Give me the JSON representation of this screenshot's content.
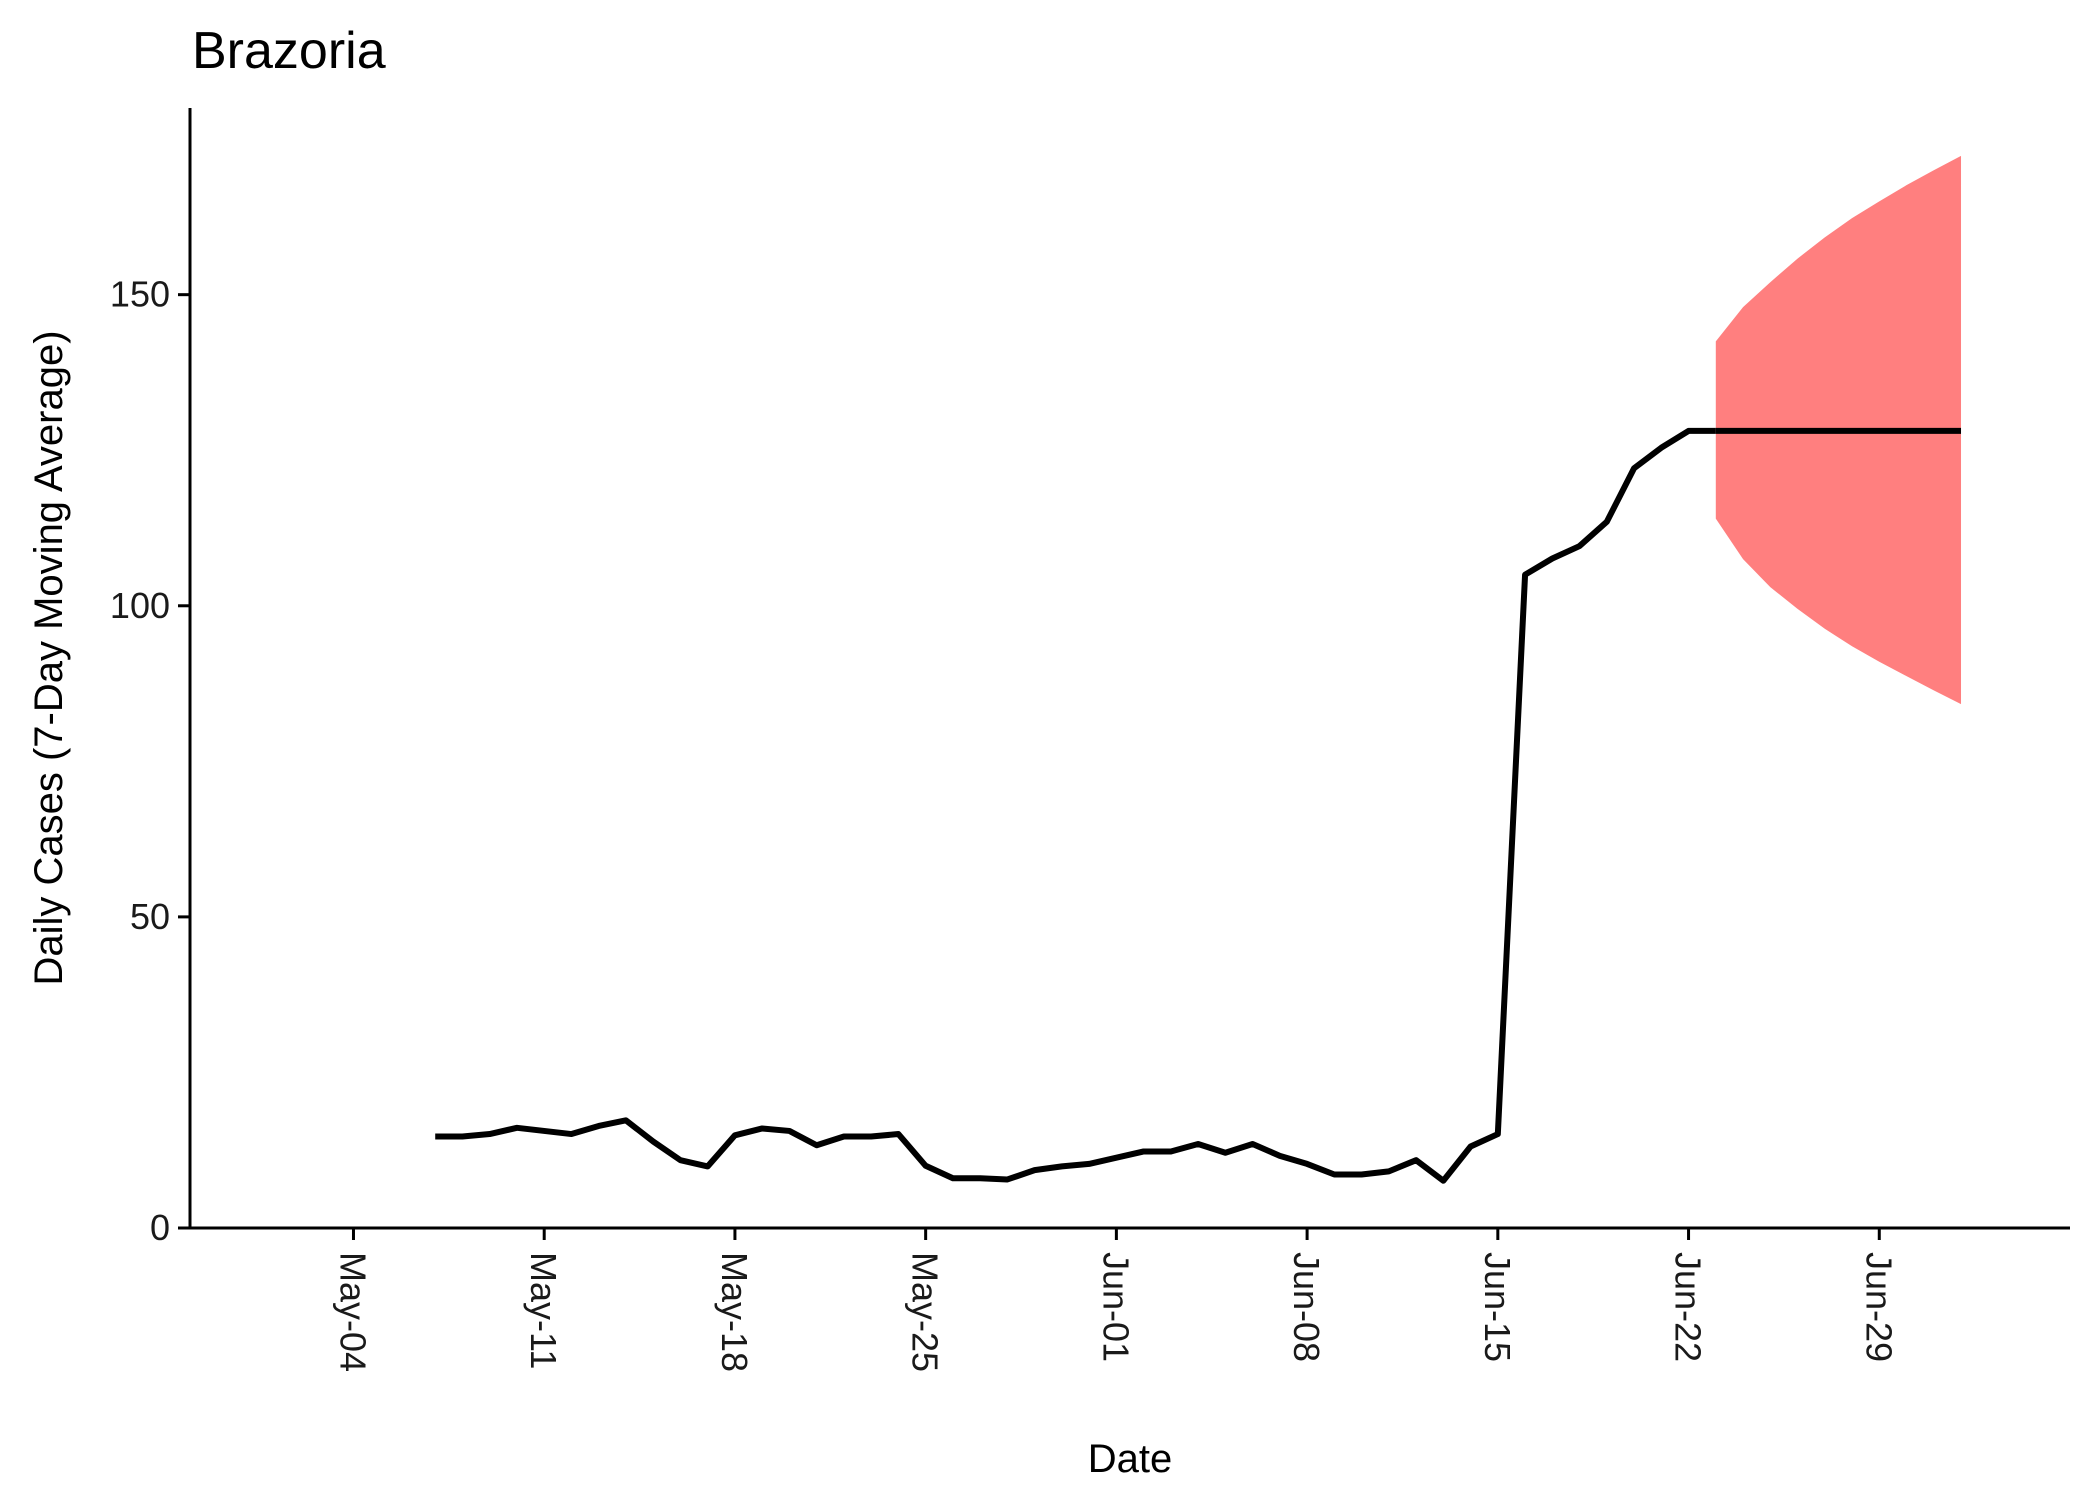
{
  "chart_data": {
    "type": "line",
    "title": "Brazoria",
    "xlabel": "Date",
    "ylabel": "Daily Cases (7-Day Moving Average)",
    "x_type": "date",
    "xlim": [
      "2020-04-28",
      "2020-07-06"
    ],
    "ylim": [
      0,
      180
    ],
    "x_ticks": [
      {
        "date": "2020-05-04",
        "label": "May-04"
      },
      {
        "date": "2020-05-11",
        "label": "May-11"
      },
      {
        "date": "2020-05-18",
        "label": "May-18"
      },
      {
        "date": "2020-05-25",
        "label": "May-25"
      },
      {
        "date": "2020-06-01",
        "label": "Jun-01"
      },
      {
        "date": "2020-06-08",
        "label": "Jun-08"
      },
      {
        "date": "2020-06-15",
        "label": "Jun-15"
      },
      {
        "date": "2020-06-22",
        "label": "Jun-22"
      },
      {
        "date": "2020-06-29",
        "label": "Jun-29"
      }
    ],
    "y_ticks": [
      {
        "value": 0,
        "label": "0"
      },
      {
        "value": 50,
        "label": "50"
      },
      {
        "value": 100,
        "label": "100"
      },
      {
        "value": 150,
        "label": "150"
      }
    ],
    "grid": false,
    "legend": "none",
    "series": [
      {
        "kind": "observed",
        "color": "#000000",
        "points": [
          [
            "2020-05-07",
            14.7
          ],
          [
            "2020-05-08",
            14.7
          ],
          [
            "2020-05-09",
            15.1
          ],
          [
            "2020-05-10",
            16.1
          ],
          [
            "2020-05-11",
            15.6
          ],
          [
            "2020-05-12",
            15.1
          ],
          [
            "2020-05-13",
            16.4
          ],
          [
            "2020-05-14",
            17.3
          ],
          [
            "2020-05-15",
            13.9
          ],
          [
            "2020-05-16",
            10.9
          ],
          [
            "2020-05-17",
            9.9
          ],
          [
            "2020-05-18",
            14.9
          ],
          [
            "2020-05-19",
            16.0
          ],
          [
            "2020-05-20",
            15.6
          ],
          [
            "2020-05-21",
            13.3
          ],
          [
            "2020-05-22",
            14.7
          ],
          [
            "2020-05-23",
            14.7
          ],
          [
            "2020-05-24",
            15.1
          ],
          [
            "2020-05-25",
            10.0
          ],
          [
            "2020-05-26",
            8.0
          ],
          [
            "2020-05-27",
            8.0
          ],
          [
            "2020-05-28",
            7.8
          ],
          [
            "2020-05-29",
            9.3
          ],
          [
            "2020-05-30",
            9.9
          ],
          [
            "2020-05-31",
            10.3
          ],
          [
            "2020-06-01",
            11.3
          ],
          [
            "2020-06-02",
            12.3
          ],
          [
            "2020-06-03",
            12.3
          ],
          [
            "2020-06-04",
            13.5
          ],
          [
            "2020-06-05",
            12.1
          ],
          [
            "2020-06-06",
            13.5
          ],
          [
            "2020-06-07",
            11.6
          ],
          [
            "2020-06-08",
            10.3
          ],
          [
            "2020-06-09",
            8.6
          ],
          [
            "2020-06-10",
            8.6
          ],
          [
            "2020-06-11",
            9.1
          ],
          [
            "2020-06-12",
            10.9
          ],
          [
            "2020-06-13",
            7.6
          ],
          [
            "2020-06-14",
            13.1
          ],
          [
            "2020-06-15",
            15.1
          ],
          [
            "2020-06-16",
            105.0
          ],
          [
            "2020-06-17",
            107.6
          ],
          [
            "2020-06-18",
            109.6
          ],
          [
            "2020-06-19",
            113.5
          ],
          [
            "2020-06-20",
            122.1
          ],
          [
            "2020-06-21",
            125.4
          ],
          [
            "2020-06-22",
            128.1
          ],
          [
            "2020-06-23",
            128.1
          ]
        ]
      },
      {
        "kind": "forecast",
        "color": "#000000",
        "points": [
          [
            "2020-06-23",
            128.1
          ],
          [
            "2020-07-02",
            128.1
          ]
        ]
      }
    ],
    "band": {
      "kind": "forecast interval",
      "color": "#FF7F7F",
      "points": [
        [
          "2020-06-23",
          114.0,
          142.5
        ],
        [
          "2020-06-24",
          107.5,
          148.0
        ],
        [
          "2020-06-25",
          103.0,
          152.0
        ],
        [
          "2020-06-26",
          99.5,
          155.8
        ],
        [
          "2020-06-27",
          96.3,
          159.2
        ],
        [
          "2020-06-28",
          93.5,
          162.3
        ],
        [
          "2020-06-29",
          91.0,
          165.0
        ],
        [
          "2020-06-30",
          88.7,
          167.6
        ],
        [
          "2020-07-01",
          86.4,
          170.0
        ],
        [
          "2020-07-02",
          84.2,
          172.3
        ]
      ]
    }
  }
}
